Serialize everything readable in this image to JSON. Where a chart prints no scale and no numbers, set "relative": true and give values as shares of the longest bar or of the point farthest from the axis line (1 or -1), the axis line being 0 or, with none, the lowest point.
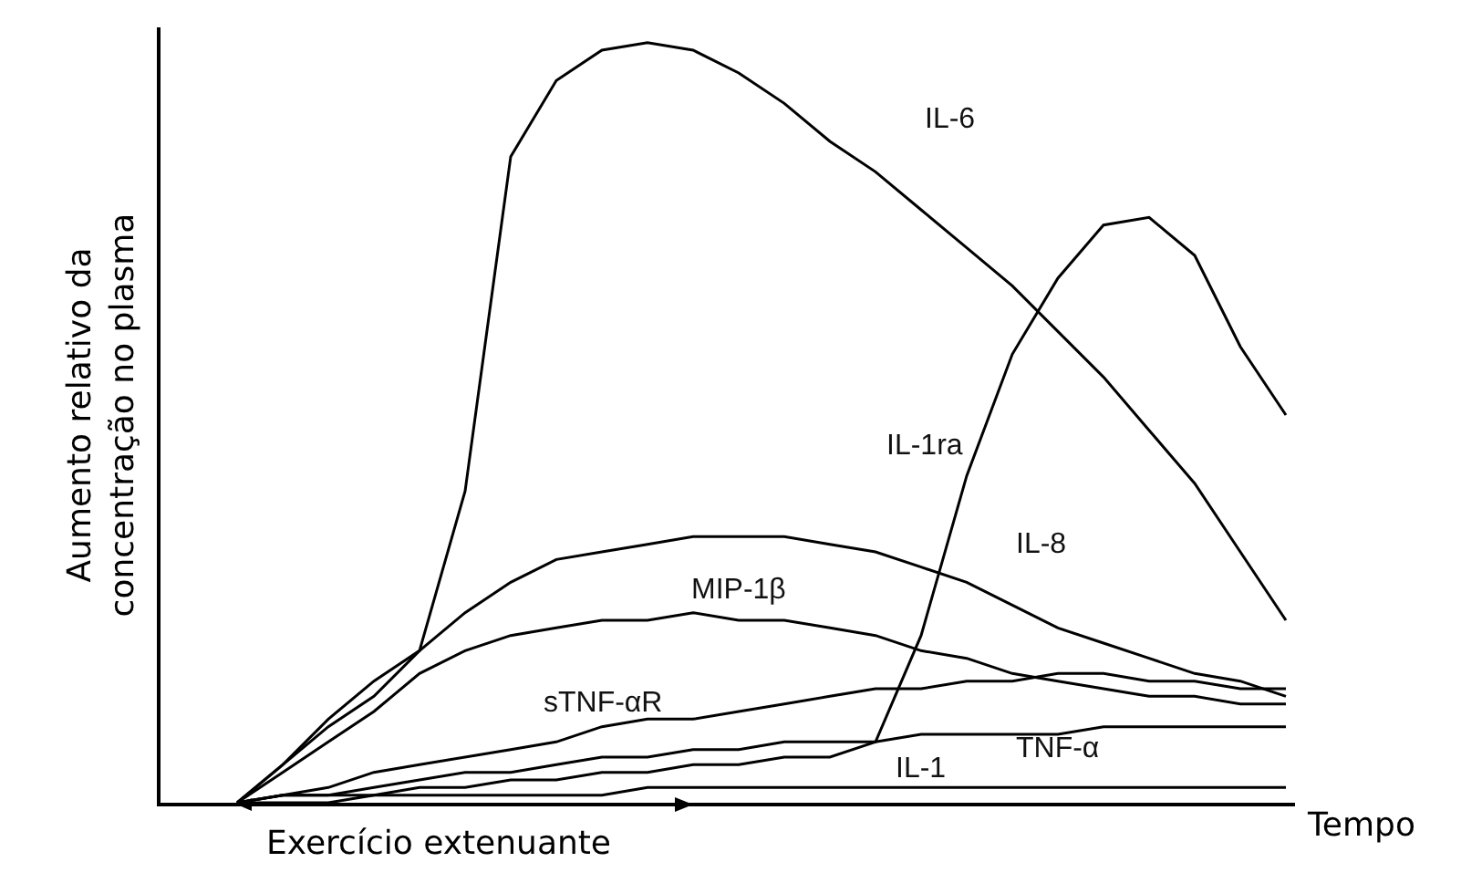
{
  "chart_data": {
    "type": "line",
    "relative": true,
    "xlabel": "Tempo",
    "ylabel": "Aumento relativo da\nconcentração no plasma",
    "categories": [
      null,
      null,
      null,
      null,
      null,
      null,
      null,
      null,
      null,
      null,
      null,
      null,
      null,
      null,
      null,
      null,
      null,
      null,
      null,
      null,
      null,
      null,
      null,
      null
    ],
    "annotations": [
      "Exercício extenuante"
    ],
    "marker": "none",
    "line_style": "solid",
    "legend": false,
    "series": [
      {
        "name": "IL-6",
        "color": "#000000",
        "values": [
          0,
          0.05,
          0.11,
          0.16,
          0.2,
          0.41,
          0.85,
          0.95,
          0.99,
          1,
          0.99,
          0.96,
          0.92,
          0.87,
          0.83,
          0.78,
          0.73,
          0.68,
          0.62,
          0.56,
          0.49,
          0.42,
          0.33,
          0.24
        ]
      },
      {
        "name": "IL-1ra",
        "color": "#000000",
        "values": [
          0,
          0.01,
          0.01,
          0.01,
          0.02,
          0.02,
          0.03,
          0.03,
          0.04,
          0.04,
          0.05,
          0.05,
          0.06,
          0.06,
          0.08,
          0.22,
          0.43,
          0.59,
          0.69,
          0.76,
          0.77,
          0.72,
          0.6,
          0.51
        ]
      },
      {
        "name": "IL-8",
        "color": "#000000",
        "values": [
          0,
          0.05,
          0.1,
          0.14,
          0.2,
          0.25,
          0.29,
          0.32,
          0.33,
          0.34,
          0.35,
          0.35,
          0.35,
          0.34,
          0.33,
          0.31,
          0.29,
          0.26,
          0.23,
          0.21,
          0.19,
          0.17,
          0.16,
          0.14
        ]
      },
      {
        "name": "MIP-1β",
        "color": "#000000",
        "values": [
          0,
          0.04,
          0.08,
          0.12,
          0.17,
          0.2,
          0.22,
          0.23,
          0.24,
          0.24,
          0.25,
          0.24,
          0.24,
          0.23,
          0.22,
          0.2,
          0.19,
          0.17,
          0.16,
          0.15,
          0.14,
          0.14,
          0.13,
          0.13
        ]
      },
      {
        "name": "sTNF-αR",
        "color": "#000000",
        "values": [
          0,
          0.01,
          0.02,
          0.04,
          0.05,
          0.06,
          0.07,
          0.08,
          0.1,
          0.11,
          0.11,
          0.12,
          0.13,
          0.14,
          0.15,
          0.15,
          0.16,
          0.16,
          0.17,
          0.17,
          0.16,
          0.16,
          0.15,
          0.15
        ]
      },
      {
        "name": "TNF-α",
        "color": "#000000",
        "values": [
          0,
          0.01,
          0.01,
          0.02,
          0.03,
          0.04,
          0.04,
          0.05,
          0.06,
          0.06,
          0.07,
          0.07,
          0.08,
          0.08,
          0.08,
          0.09,
          0.09,
          0.09,
          0.09,
          0.1,
          0.1,
          0.1,
          0.1,
          0.1
        ]
      },
      {
        "name": "IL-1",
        "color": "#000000",
        "values": [
          0,
          0,
          0,
          0.01,
          0.01,
          0.01,
          0.01,
          0.01,
          0.01,
          0.02,
          0.02,
          0.02,
          0.02,
          0.02,
          0.02,
          0.02,
          0.02,
          0.02,
          0.02,
          0.02,
          0.02,
          0.02,
          0.02,
          0.02
        ]
      }
    ]
  }
}
